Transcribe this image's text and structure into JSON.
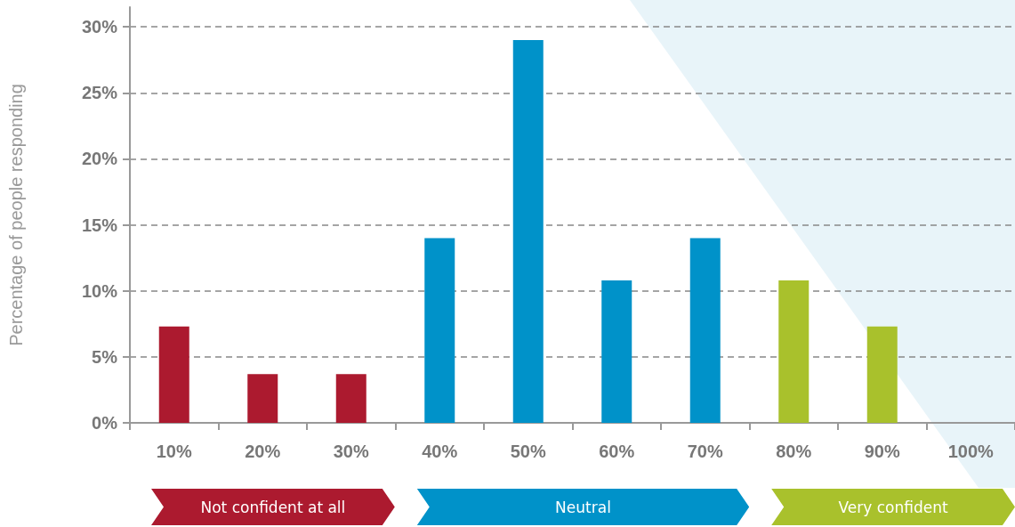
{
  "chart_data": {
    "type": "bar",
    "ylabel": "Percentage of people responding",
    "categories": [
      "10%",
      "20%",
      "30%",
      "40%",
      "50%",
      "60%",
      "70%",
      "80%",
      "90%",
      "100%"
    ],
    "series": [
      {
        "name": "Not confident at all",
        "color": "#ac1a2f",
        "values": [
          7.3,
          3.7,
          3.7,
          null,
          null,
          null,
          null,
          null,
          null,
          null
        ]
      },
      {
        "name": "Neutral",
        "color": "#0092c9",
        "values": [
          null,
          null,
          null,
          14,
          29,
          10.8,
          14,
          null,
          null,
          null
        ]
      },
      {
        "name": "Very confident",
        "color": "#a9c12c",
        "values": [
          null,
          null,
          null,
          null,
          null,
          null,
          null,
          10.8,
          7.3,
          0
        ]
      }
    ],
    "ylim": [
      0,
      31.5
    ],
    "yticks": [
      {
        "value": 0,
        "label": "0%"
      },
      {
        "value": 5,
        "label": "5%"
      },
      {
        "value": 10,
        "label": "10%"
      },
      {
        "value": 15,
        "label": "15%"
      },
      {
        "value": 20,
        "label": "20%"
      },
      {
        "value": 25,
        "label": "25%"
      },
      {
        "value": 30,
        "label": "30%"
      }
    ],
    "grid": "y",
    "legend": "bottom"
  }
}
